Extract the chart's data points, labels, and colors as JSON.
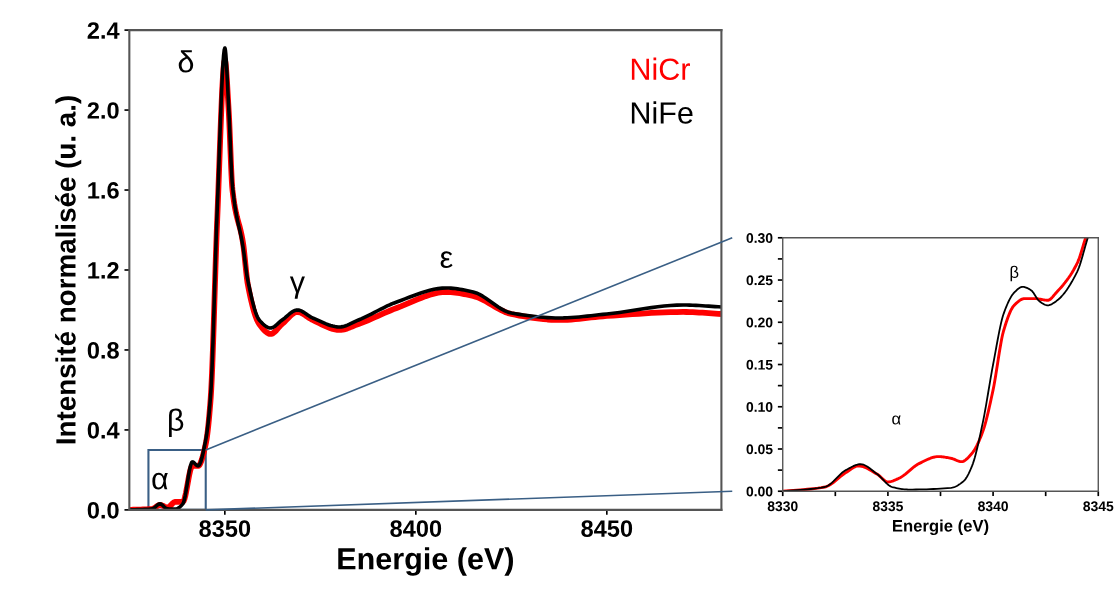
{
  "chart_data": [
    {
      "type": "line",
      "xlabel": "Energie (eV)",
      "ylabel": "Intensité normalisée (u. a.)",
      "xlim": [
        8325,
        8480
      ],
      "ylim": [
        0,
        2.4
      ],
      "xticks": [
        8350,
        8400,
        8450
      ],
      "yticks": [
        {
          "value": 0,
          "label": "0.0"
        },
        {
          "value": 0.4,
          "label": "0.4"
        },
        {
          "value": 0.8,
          "label": "0.8"
        },
        {
          "value": 1.2,
          "label": "1.2"
        },
        {
          "value": 1.6,
          "label": "1.6"
        },
        {
          "value": 2.0,
          "label": "2.0"
        },
        {
          "value": 2.4,
          "label": "2.4"
        }
      ],
      "legend": "top right",
      "grid": false,
      "marker": "none",
      "line_style": "solid",
      "series": [
        {
          "name": "NiCr",
          "color": "#ff0000",
          "x": [
            8325,
            8331,
            8333,
            8335,
            8337,
            8339,
            8341.5,
            8343,
            8345,
            8346.3,
            8348,
            8350,
            8351,
            8352,
            8354.8,
            8356,
            8359,
            8362,
            8365,
            8369,
            8373,
            8380,
            8385,
            8395,
            8408,
            8415,
            8425,
            8437.6,
            8450,
            8470,
            8480
          ],
          "values": [
            0,
            0.005,
            0.025,
            0.012,
            0.04,
            0.04,
            0.22,
            0.22,
            0.33,
            0.56,
            1.45,
            2.25,
            2.0,
            1.6,
            1.33,
            1.13,
            0.93,
            0.88,
            0.93,
            0.99,
            0.95,
            0.9,
            0.93,
            1.01,
            1.09,
            1.07,
            0.98,
            0.95,
            0.97,
            0.99,
            0.98
          ]
        },
        {
          "name": "NiFe",
          "color": "#000000",
          "x": [
            8325,
            8331,
            8333,
            8335,
            8337,
            8339,
            8341.5,
            8343,
            8345,
            8346.3,
            8348,
            8350,
            8351,
            8352,
            8354.8,
            8356,
            8359,
            8362,
            8365,
            8369,
            8373,
            8380,
            8385,
            8395,
            8408,
            8415,
            8425,
            8437.6,
            8450,
            8470,
            8480
          ],
          "values": [
            0,
            0.005,
            0.03,
            0.005,
            0.004,
            0.03,
            0.24,
            0.22,
            0.35,
            0.58,
            1.5,
            2.31,
            2.02,
            1.62,
            1.31,
            1.15,
            0.95,
            0.91,
            0.95,
            1.0,
            0.96,
            0.915,
            0.95,
            1.04,
            1.11,
            1.09,
            0.985,
            0.96,
            0.98,
            1.025,
            1.015
          ]
        }
      ],
      "annotations": [
        {
          "text": "α",
          "x": 8333,
          "y": 0.03
        },
        {
          "text": "β",
          "x": 8341.5,
          "y": 0.24
        },
        {
          "text": "δ",
          "x": 8350,
          "y": 2.31
        },
        {
          "text": "γ",
          "x": 8369,
          "y": 1.0
        },
        {
          "text": "ε",
          "x": 8408,
          "y": 1.11
        }
      ]
    },
    {
      "type": "line",
      "xlabel": "Energie (eV)",
      "xlim": [
        8330,
        8345
      ],
      "ylim": [
        0,
        0.3
      ],
      "xticks": [
        8330,
        {
          "value": 8332.5,
          "label": null
        },
        8335,
        {
          "value": 8337.5,
          "label": null
        },
        8340,
        {
          "value": 8342.5,
          "label": null
        },
        8345
      ],
      "yticks": [
        {
          "value": 0,
          "label": "0.00"
        },
        {
          "value": 0.025,
          "label": null
        },
        {
          "value": 0.05,
          "label": "0.05"
        },
        {
          "value": 0.075,
          "label": null
        },
        {
          "value": 0.1,
          "label": "0.10"
        },
        {
          "value": 0.125,
          "label": null
        },
        {
          "value": 0.15,
          "label": "0.15"
        },
        {
          "value": 0.175,
          "label": null
        },
        {
          "value": 0.2,
          "label": "0.20"
        },
        {
          "value": 0.225,
          "label": null
        },
        {
          "value": 0.25,
          "label": "0.25"
        },
        {
          "value": 0.275,
          "label": null
        },
        {
          "value": 0.3,
          "label": "0.30"
        }
      ],
      "grid": false,
      "marker": "none",
      "line_style": "solid",
      "series": [
        {
          "color": "#ff0000",
          "x": [
            8330,
            8332,
            8333,
            8333.6,
            8334.5,
            8335,
            8335.5,
            8336.5,
            8337.4,
            8338,
            8338.5,
            8339,
            8339.5,
            8340,
            8340.5,
            8341,
            8341.5,
            8342,
            8342.6,
            8343,
            8344,
            8344.4
          ],
          "values": [
            0,
            0.005,
            0.022,
            0.03,
            0.02,
            0.011,
            0.015,
            0.033,
            0.041,
            0.039,
            0.035,
            0.045,
            0.07,
            0.12,
            0.19,
            0.22,
            0.228,
            0.228,
            0.226,
            0.235,
            0.27,
            0.3
          ]
        },
        {
          "color": "#000000",
          "x": [
            8330,
            8332,
            8333,
            8333.7,
            8334.5,
            8335.2,
            8336,
            8338,
            8338.6,
            8339,
            8339.5,
            8340,
            8340.5,
            8341,
            8341.4,
            8341.8,
            8342.2,
            8342.6,
            8343,
            8344,
            8344.5
          ],
          "values": [
            0,
            0.005,
            0.025,
            0.032,
            0.02,
            0.005,
            0.002,
            0.004,
            0.012,
            0.03,
            0.08,
            0.15,
            0.21,
            0.235,
            0.242,
            0.238,
            0.225,
            0.22,
            0.225,
            0.26,
            0.3
          ]
        }
      ],
      "annotations": [
        "α",
        {
          "text": "β",
          "x": 8341.4,
          "y": 0.242
        }
      ]
    }
  ]
}
